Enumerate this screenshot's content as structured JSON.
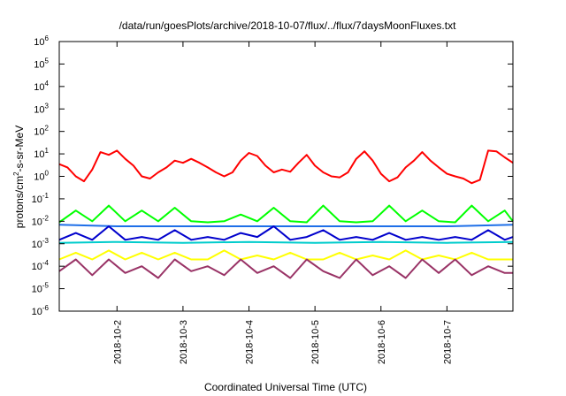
{
  "chart_data": {
    "type": "line",
    "title": "/data/run/goesPlots/archive/2018-10-07/flux/../flux/7daysMoonFluxes.txt",
    "xlabel": "Coordinated Universal Time (UTC)",
    "ylabel": "protons/cm2-s-sr-MeV",
    "y_scale": "log",
    "ylim": [
      1e-06,
      1000000.0
    ],
    "y_ticks": [
      {
        "base": "10",
        "exp": "-6"
      },
      {
        "base": "10",
        "exp": "-5"
      },
      {
        "base": "10",
        "exp": "-4"
      },
      {
        "base": "10",
        "exp": "-3"
      },
      {
        "base": "10",
        "exp": "-2"
      },
      {
        "base": "10",
        "exp": "-1"
      },
      {
        "base": "10",
        "exp": "0"
      },
      {
        "base": "10",
        "exp": "1"
      },
      {
        "base": "10",
        "exp": "2"
      },
      {
        "base": "10",
        "exp": "3"
      },
      {
        "base": "10",
        "exp": "4"
      },
      {
        "base": "10",
        "exp": "5"
      },
      {
        "base": "10",
        "exp": "6"
      }
    ],
    "xlim": [
      "2018-10-01T03:00",
      "2018-10-08T00:00"
    ],
    "x_ticks": [
      "2018-10-2",
      "2018-10-3",
      "2018-10-4",
      "2018-10-5",
      "2018-10-6",
      "2018-10-7"
    ],
    "x_tick_dates": [
      "2018-10-02T00:00",
      "2018-10-03T00:00",
      "2018-10-04T00:00",
      "2018-10-05T00:00",
      "2018-10-06T00:00",
      "2018-10-07T00:00"
    ],
    "grid": false,
    "legend": "none",
    "series": [
      {
        "color": "#ff0000",
        "x": [
          "2018-10-01T03:00",
          "2018-10-01T06:00",
          "2018-10-01T09:00",
          "2018-10-01T12:00",
          "2018-10-01T15:00",
          "2018-10-01T18:00",
          "2018-10-01T21:00",
          "2018-10-02T00:00",
          "2018-10-02T03:00",
          "2018-10-02T06:00",
          "2018-10-02T09:00",
          "2018-10-02T12:00",
          "2018-10-02T15:00",
          "2018-10-02T18:00",
          "2018-10-02T21:00",
          "2018-10-03T00:00",
          "2018-10-03T03:00",
          "2018-10-03T06:00",
          "2018-10-03T09:00",
          "2018-10-03T12:00",
          "2018-10-03T15:00",
          "2018-10-03T18:00",
          "2018-10-03T21:00",
          "2018-10-04T00:00",
          "2018-10-04T03:00",
          "2018-10-04T06:00",
          "2018-10-04T09:00",
          "2018-10-04T12:00",
          "2018-10-04T15:00",
          "2018-10-04T18:00",
          "2018-10-04T21:00",
          "2018-10-05T00:00",
          "2018-10-05T03:00",
          "2018-10-05T06:00",
          "2018-10-05T09:00",
          "2018-10-05T12:00",
          "2018-10-05T15:00",
          "2018-10-05T18:00",
          "2018-10-05T21:00",
          "2018-10-06T00:00",
          "2018-10-06T03:00",
          "2018-10-06T06:00",
          "2018-10-06T09:00",
          "2018-10-06T12:00",
          "2018-10-06T15:00",
          "2018-10-06T18:00",
          "2018-10-06T21:00",
          "2018-10-07T00:00",
          "2018-10-07T03:00",
          "2018-10-07T06:00",
          "2018-10-07T09:00",
          "2018-10-07T12:00",
          "2018-10-07T15:00",
          "2018-10-07T18:00",
          "2018-10-07T21:00",
          "2018-10-08T00:00"
        ],
        "values": [
          3.5,
          2.5,
          1.0,
          0.6,
          2.0,
          12,
          9,
          14,
          6,
          3,
          1.0,
          0.8,
          1.5,
          2.5,
          5,
          4,
          6,
          4,
          2.5,
          1.5,
          1.0,
          1.5,
          5,
          11,
          8,
          3,
          1.5,
          2.0,
          1.6,
          4,
          9,
          3,
          1.5,
          1.0,
          0.9,
          1.5,
          6,
          13,
          5,
          1.3,
          0.6,
          0.9,
          2.5,
          5,
          12,
          5,
          2.5,
          1.3,
          1.0,
          0.8,
          0.5,
          0.7,
          14,
          13,
          7,
          4
        ]
      },
      {
        "color": "#00ff00",
        "x": [
          "2018-10-01T03:00",
          "2018-10-01T09:00",
          "2018-10-01T15:00",
          "2018-10-01T21:00",
          "2018-10-02T03:00",
          "2018-10-02T09:00",
          "2018-10-02T15:00",
          "2018-10-02T21:00",
          "2018-10-03T03:00",
          "2018-10-03T09:00",
          "2018-10-03T15:00",
          "2018-10-03T21:00",
          "2018-10-04T03:00",
          "2018-10-04T09:00",
          "2018-10-04T15:00",
          "2018-10-04T21:00",
          "2018-10-05T03:00",
          "2018-10-05T09:00",
          "2018-10-05T15:00",
          "2018-10-05T21:00",
          "2018-10-06T03:00",
          "2018-10-06T09:00",
          "2018-10-06T15:00",
          "2018-10-06T21:00",
          "2018-10-07T03:00",
          "2018-10-07T09:00",
          "2018-10-07T15:00",
          "2018-10-07T21:00",
          "2018-10-08T00:00"
        ],
        "values": [
          0.009,
          0.03,
          0.01,
          0.05,
          0.01,
          0.03,
          0.01,
          0.04,
          0.01,
          0.009,
          0.01,
          0.02,
          0.01,
          0.04,
          0.01,
          0.009,
          0.05,
          0.01,
          0.009,
          0.01,
          0.05,
          0.01,
          0.03,
          0.01,
          0.009,
          0.05,
          0.01,
          0.03,
          0.01
        ]
      },
      {
        "color": "#1e6fe8",
        "x": [
          "2018-10-01T03:00",
          "2018-10-02T00:00",
          "2018-10-03T00:00",
          "2018-10-04T00:00",
          "2018-10-05T00:00",
          "2018-10-06T00:00",
          "2018-10-07T00:00",
          "2018-10-08T00:00"
        ],
        "values": [
          0.007,
          0.006,
          0.006,
          0.006,
          0.006,
          0.006,
          0.006,
          0.007
        ]
      },
      {
        "color": "#0000cc",
        "x": [
          "2018-10-01T03:00",
          "2018-10-01T09:00",
          "2018-10-01T15:00",
          "2018-10-01T21:00",
          "2018-10-02T03:00",
          "2018-10-02T09:00",
          "2018-10-02T15:00",
          "2018-10-02T21:00",
          "2018-10-03T03:00",
          "2018-10-03T09:00",
          "2018-10-03T15:00",
          "2018-10-03T21:00",
          "2018-10-04T03:00",
          "2018-10-04T09:00",
          "2018-10-04T15:00",
          "2018-10-04T21:00",
          "2018-10-05T03:00",
          "2018-10-05T09:00",
          "2018-10-05T15:00",
          "2018-10-05T21:00",
          "2018-10-06T03:00",
          "2018-10-06T09:00",
          "2018-10-06T15:00",
          "2018-10-06T21:00",
          "2018-10-07T03:00",
          "2018-10-07T09:00",
          "2018-10-07T15:00",
          "2018-10-07T21:00",
          "2018-10-08T00:00"
        ],
        "values": [
          0.0015,
          0.003,
          0.0015,
          0.006,
          0.0015,
          0.002,
          0.0015,
          0.004,
          0.0015,
          0.002,
          0.0015,
          0.003,
          0.002,
          0.006,
          0.0015,
          0.002,
          0.004,
          0.0015,
          0.002,
          0.0015,
          0.003,
          0.0015,
          0.002,
          0.0015,
          0.002,
          0.0015,
          0.004,
          0.0015,
          0.002
        ]
      },
      {
        "color": "#00cccc",
        "x": [
          "2018-10-01T03:00",
          "2018-10-02T00:00",
          "2018-10-03T00:00",
          "2018-10-04T00:00",
          "2018-10-05T00:00",
          "2018-10-06T00:00",
          "2018-10-07T00:00",
          "2018-10-08T00:00"
        ],
        "values": [
          0.0011,
          0.0012,
          0.0011,
          0.0012,
          0.0011,
          0.0012,
          0.0011,
          0.0012
        ]
      },
      {
        "color": "#ffff00",
        "x": [
          "2018-10-01T03:00",
          "2018-10-01T09:00",
          "2018-10-01T15:00",
          "2018-10-01T21:00",
          "2018-10-02T03:00",
          "2018-10-02T09:00",
          "2018-10-02T15:00",
          "2018-10-02T21:00",
          "2018-10-03T03:00",
          "2018-10-03T09:00",
          "2018-10-03T15:00",
          "2018-10-03T21:00",
          "2018-10-04T03:00",
          "2018-10-04T09:00",
          "2018-10-04T15:00",
          "2018-10-04T21:00",
          "2018-10-05T03:00",
          "2018-10-05T09:00",
          "2018-10-05T15:00",
          "2018-10-05T21:00",
          "2018-10-06T03:00",
          "2018-10-06T09:00",
          "2018-10-06T15:00",
          "2018-10-06T21:00",
          "2018-10-07T03:00",
          "2018-10-07T09:00",
          "2018-10-07T15:00",
          "2018-10-07T21:00",
          "2018-10-08T00:00"
        ],
        "values": [
          0.0002,
          0.0004,
          0.0002,
          0.0005,
          0.0002,
          0.0004,
          0.0002,
          0.0004,
          0.0002,
          0.0002,
          0.0005,
          0.0002,
          0.0003,
          0.0002,
          0.0004,
          0.0002,
          0.0002,
          0.0004,
          0.0002,
          0.0003,
          0.0002,
          0.0005,
          0.0002,
          0.0003,
          0.0002,
          0.0004,
          0.0002,
          0.0002,
          0.0002
        ]
      },
      {
        "color": "#993366",
        "x": [
          "2018-10-01T03:00",
          "2018-10-01T09:00",
          "2018-10-01T15:00",
          "2018-10-01T21:00",
          "2018-10-02T03:00",
          "2018-10-02T09:00",
          "2018-10-02T15:00",
          "2018-10-02T21:00",
          "2018-10-03T03:00",
          "2018-10-03T09:00",
          "2018-10-03T15:00",
          "2018-10-03T21:00",
          "2018-10-04T03:00",
          "2018-10-04T09:00",
          "2018-10-04T15:00",
          "2018-10-04T21:00",
          "2018-10-05T03:00",
          "2018-10-05T09:00",
          "2018-10-05T15:00",
          "2018-10-05T21:00",
          "2018-10-06T03:00",
          "2018-10-06T09:00",
          "2018-10-06T15:00",
          "2018-10-06T21:00",
          "2018-10-07T03:00",
          "2018-10-07T09:00",
          "2018-10-07T15:00",
          "2018-10-07T21:00",
          "2018-10-08T00:00"
        ],
        "values": [
          6e-05,
          0.0002,
          4e-05,
          0.0002,
          5e-05,
          0.0001,
          3e-05,
          0.0002,
          6e-05,
          0.0001,
          4e-05,
          0.0002,
          5e-05,
          0.0001,
          3e-05,
          0.0002,
          6e-05,
          3e-05,
          0.0002,
          4e-05,
          0.0001,
          3e-05,
          0.0002,
          5e-05,
          0.0002,
          4e-05,
          0.0001,
          5e-05,
          5e-05
        ]
      }
    ]
  }
}
